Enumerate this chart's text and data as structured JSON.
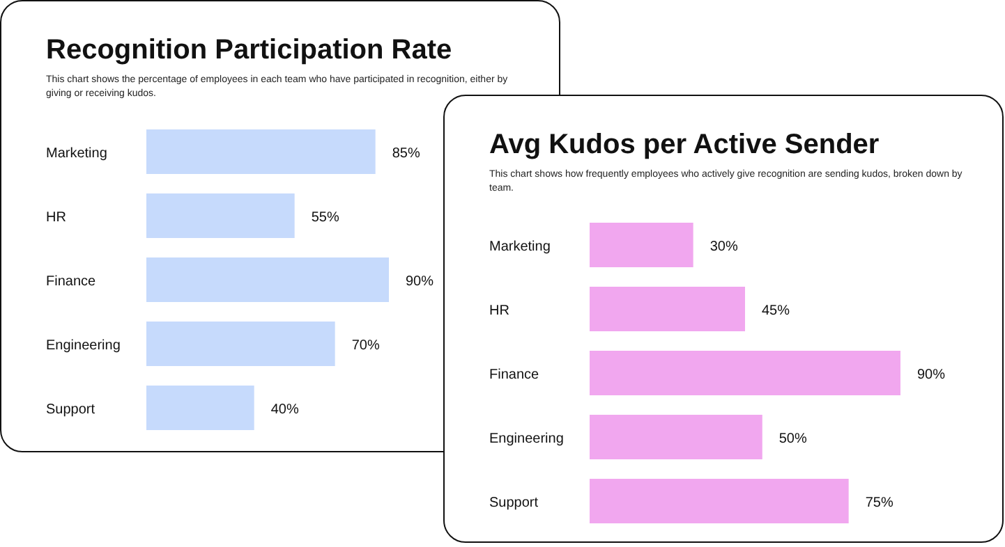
{
  "chart_data": [
    {
      "type": "bar",
      "orientation": "horizontal",
      "title": "Recognition Participation Rate",
      "subtitle": "This chart shows the percentage of employees in each team who have participated in recognition, either by giving or receiving kudos.",
      "categories": [
        "Marketing",
        "HR",
        "Finance",
        "Engineering",
        "Support"
      ],
      "values": [
        85,
        55,
        90,
        70,
        40
      ],
      "value_labels": [
        "85%",
        "55%",
        "90%",
        "70%",
        "40%"
      ],
      "color": "#c6dafc"
    },
    {
      "type": "bar",
      "orientation": "horizontal",
      "title": "Avg Kudos per Active Sender",
      "subtitle": "This chart shows how frequently employees who actively give recognition are sending kudos, broken down by team.",
      "categories": [
        "Marketing",
        "HR",
        "Finance",
        "Engineering",
        "Support"
      ],
      "values": [
        30,
        45,
        90,
        50,
        75
      ],
      "value_labels": [
        "30%",
        "45%",
        "90%",
        "50%",
        "75%"
      ],
      "color": "#f1a7ef"
    }
  ]
}
